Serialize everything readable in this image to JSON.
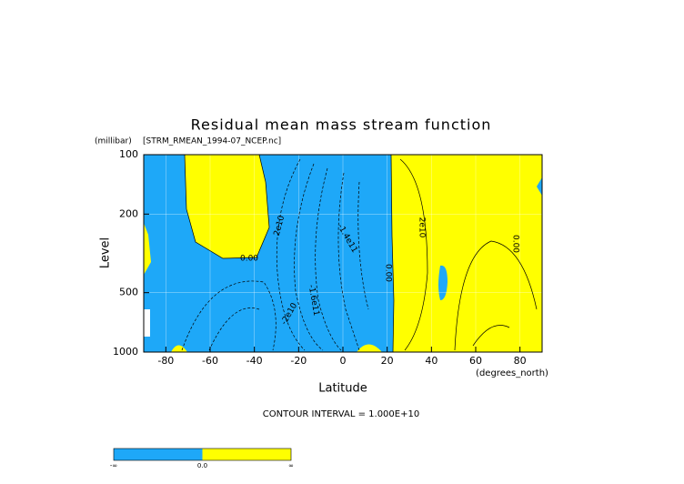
{
  "chart_data": {
    "type": "contour",
    "title": "Residual mean mass stream function",
    "source": "[STRM_RMEAN_1994-07_NCEP.nc]",
    "y_units": "(millibar)",
    "ylabel": "Level",
    "xlabel": "Latitude",
    "x_units": "(degrees_north)",
    "xlim": [
      -90,
      90
    ],
    "xticks": [
      -80,
      -60,
      -40,
      -20,
      0,
      20,
      40,
      60,
      80
    ],
    "ylim": [
      1000,
      100
    ],
    "yticks": [
      100,
      200,
      500,
      1000
    ],
    "y_log": true,
    "grid": true,
    "fill": {
      "negative": "#1ea8f8",
      "positive": "#ffff00"
    },
    "contour_labels": [
      "0.00",
      "2e10",
      "-1.4e11",
      "-1.6e11",
      "2e10",
      "0.00",
      "0.00",
      "-2e10"
    ],
    "contour_interval_text": "CONTOUR INTERVAL = 1.000E+10",
    "colorbar": [
      {
        "label": "-∞",
        "color": "#1ea8f8"
      },
      {
        "label": "0.0",
        "color": "#ffff00"
      },
      {
        "label": "∞"
      }
    ]
  }
}
